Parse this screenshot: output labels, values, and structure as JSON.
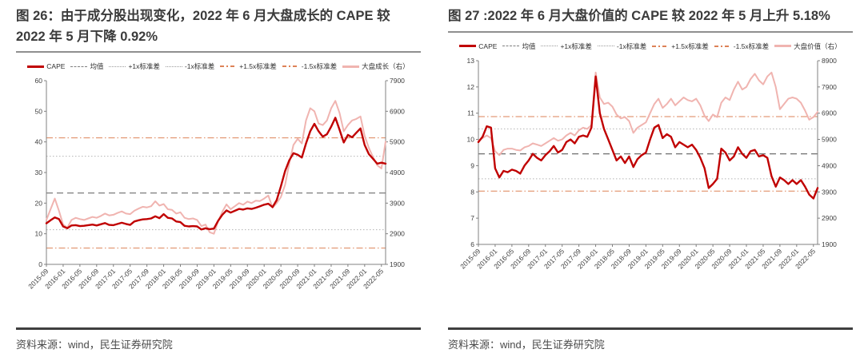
{
  "figures": [
    {
      "title": "图 26：由于成分股出现变化，2022 年 6 月大盘成长的 CAPE 较 2022 年 5 月下降 0.92%",
      "source": "资料来源：wind，民生证券研究院"
    },
    {
      "title": "图 27 :2022 年 6 月大盘价值的 CAPE 较 2022 年 5 月上升 5.18%",
      "source": "资料来源：wind，民生证券研究院"
    }
  ],
  "colors": {
    "cape_line": "#c00000",
    "index_line": "#f0b4b0",
    "mean_line": "#6e6e6e",
    "sd1_line": "#b3b3b3",
    "sd15_line": "#dd8257",
    "title_text": "#3b3b3b",
    "source_text": "#4a4a4a"
  },
  "chart_data": [
    {
      "type": "line",
      "title": "大盘成长 CAPE",
      "x_monthly_start": "2015-09",
      "x_monthly_end": "2022-06",
      "x_tick_labels": [
        "2015-09",
        "2016-01",
        "2016-05",
        "2016-09",
        "2017-01",
        "2017-05",
        "2017-09",
        "2018-01",
        "2018-05",
        "2018-09",
        "2019-01",
        "2019-05",
        "2019-09",
        "2020-01",
        "2020-05",
        "2020-09",
        "2021-01",
        "2021-05",
        "2021-09",
        "2022-01",
        "2022-05"
      ],
      "left_axis": {
        "min": 0,
        "max": 60,
        "step": 10
      },
      "right_axis": {
        "min": 1900,
        "max": 7900,
        "step": 1000
      },
      "ref_lines": [
        {
          "name": "均值",
          "value": 23.3,
          "style": "mean"
        },
        {
          "name": "+1x标准差",
          "value": 35.3,
          "style": "sd1"
        },
        {
          "name": "-1x标准差",
          "value": 11.3,
          "style": "sd1"
        },
        {
          "name": "+1.5x标准差",
          "value": 41.3,
          "style": "sd15"
        },
        {
          "name": "-1.5x标准差",
          "value": 5.3,
          "style": "sd15"
        }
      ],
      "series": [
        {
          "name": "大盘成长（右）",
          "axis": "right",
          "style": "index",
          "values": [
            3350,
            3700,
            4050,
            3650,
            3200,
            3100,
            3350,
            3420,
            3380,
            3350,
            3400,
            3450,
            3420,
            3480,
            3560,
            3500,
            3520,
            3580,
            3630,
            3560,
            3540,
            3650,
            3720,
            3780,
            3760,
            3800,
            3960,
            3820,
            3870,
            3700,
            3680,
            3560,
            3600,
            3420,
            3380,
            3400,
            3350,
            3150,
            3200,
            2950,
            2900,
            3300,
            3620,
            3860,
            3700,
            3800,
            3900,
            3850,
            3950,
            3900,
            3980,
            3970,
            4050,
            4150,
            3750,
            3900,
            4100,
            4500,
            5200,
            5800,
            6000,
            5850,
            6600,
            7000,
            6900,
            6500,
            6450,
            6600,
            7000,
            7240,
            6850,
            6250,
            6450,
            6600,
            6650,
            6730,
            6100,
            5700,
            5400,
            5140,
            5030,
            5910
          ]
        },
        {
          "name": "CAPE",
          "axis": "left",
          "style": "cape",
          "values": [
            13.4,
            14.4,
            15.3,
            14.8,
            12.4,
            11.8,
            12.7,
            12.8,
            12.5,
            12.6,
            12.8,
            13.0,
            12.7,
            13.1,
            13.5,
            12.9,
            12.8,
            13.2,
            13.6,
            13.2,
            12.9,
            14.0,
            14.4,
            14.7,
            14.8,
            15.0,
            15.7,
            15.1,
            16.4,
            15.2,
            15.0,
            14.0,
            13.8,
            12.6,
            12.4,
            12.5,
            12.4,
            11.4,
            11.8,
            11.5,
            11.7,
            14.2,
            16.2,
            17.6,
            16.9,
            17.5,
            18.1,
            17.9,
            18.3,
            18.1,
            18.5,
            19.0,
            19.5,
            19.8,
            18.7,
            21.0,
            25.5,
            30.5,
            34.0,
            36.3,
            35.8,
            34.9,
            39.5,
            43.5,
            45.9,
            43.5,
            41.7,
            42.5,
            45.0,
            47.9,
            44.0,
            39.8,
            42.3,
            41.5,
            43.0,
            44.4,
            39.0,
            36.0,
            34.5,
            32.9,
            33.2,
            32.9
          ]
        }
      ],
      "legend": [
        {
          "label": "CAPE",
          "swatch": "cape"
        },
        {
          "label": "均值",
          "swatch": "mean"
        },
        {
          "label": "+1x标准差",
          "swatch": "sd1"
        },
        {
          "label": "-1x标准差",
          "swatch": "sd1"
        },
        {
          "label": "+1.5x标准差",
          "swatch": "sd15"
        },
        {
          "label": "-1.5x标准差",
          "swatch": "sd15"
        },
        {
          "label": "大盘成长（右）",
          "swatch": "index"
        }
      ]
    },
    {
      "type": "line",
      "title": "大盘价值 CAPE",
      "x_monthly_start": "2015-09",
      "x_monthly_end": "2022-06",
      "x_tick_labels": [
        "2015-09",
        "2016-01",
        "2016-05",
        "2016-09",
        "2017-01",
        "2017-05",
        "2017-09",
        "2018-01",
        "2018-05",
        "2018-09",
        "2019-01",
        "2019-05",
        "2019-09",
        "2020-01",
        "2020-05",
        "2020-09",
        "2021-01",
        "2021-05",
        "2021-09",
        "2022-01",
        "2022-05"
      ],
      "left_axis": {
        "min": 6,
        "max": 13,
        "step": 1
      },
      "right_axis": {
        "min": 1900,
        "max": 8900,
        "step": 1000
      },
      "ref_lines": [
        {
          "name": "均值",
          "value": 9.45,
          "style": "mean"
        },
        {
          "name": "+1x标准差",
          "value": 10.4,
          "style": "sd1"
        },
        {
          "name": "-1x标准差",
          "value": 8.5,
          "style": "sd1"
        },
        {
          "name": "+1.5x标准差",
          "value": 10.87,
          "style": "sd15"
        },
        {
          "name": "-1.5x标准差",
          "value": 8.03,
          "style": "sd15"
        }
      ],
      "series": [
        {
          "name": "大盘价值（右）",
          "axis": "right",
          "style": "index",
          "values": [
            5850,
            5950,
            6050,
            5950,
            5450,
            5300,
            5500,
            5550,
            5550,
            5500,
            5480,
            5600,
            5650,
            5750,
            5700,
            5650,
            5750,
            5850,
            5950,
            5850,
            5900,
            6050,
            6150,
            6050,
            6250,
            6350,
            6300,
            6450,
            8450,
            7500,
            7250,
            7300,
            7150,
            6850,
            6700,
            6750,
            6600,
            6150,
            6350,
            6450,
            6550,
            6900,
            7250,
            7450,
            7100,
            7250,
            7450,
            7200,
            7350,
            7500,
            7400,
            7350,
            7450,
            7200,
            6800,
            6600,
            6850,
            6750,
            7300,
            7500,
            7400,
            7800,
            8100,
            7800,
            7900,
            8200,
            8400,
            8150,
            8000,
            8300,
            8450,
            7900,
            7050,
            7250,
            7450,
            7500,
            7450,
            7300,
            7000,
            6650,
            6750,
            6950
          ]
        },
        {
          "name": "CAPE",
          "axis": "left",
          "style": "cape",
          "values": [
            9.9,
            10.1,
            10.5,
            10.45,
            8.9,
            8.55,
            8.8,
            8.75,
            8.85,
            8.8,
            8.7,
            9.0,
            9.2,
            9.45,
            9.3,
            9.2,
            9.4,
            9.55,
            9.75,
            9.5,
            9.6,
            9.9,
            10.0,
            9.85,
            10.1,
            10.15,
            10.1,
            10.45,
            12.4,
            11.0,
            10.4,
            10.0,
            9.6,
            9.2,
            9.35,
            9.1,
            9.35,
            8.95,
            9.25,
            9.4,
            9.5,
            10.0,
            10.45,
            10.55,
            10.05,
            10.2,
            10.1,
            9.7,
            9.9,
            9.8,
            9.7,
            9.8,
            9.6,
            9.3,
            8.9,
            8.15,
            8.3,
            8.5,
            9.65,
            9.5,
            9.2,
            9.35,
            9.7,
            9.45,
            9.3,
            9.55,
            9.6,
            9.35,
            9.4,
            9.3,
            8.6,
            8.2,
            8.55,
            8.45,
            8.3,
            8.45,
            8.3,
            8.45,
            8.2,
            7.9,
            7.75,
            8.15
          ]
        }
      ],
      "legend": [
        {
          "label": "CAPE",
          "swatch": "cape"
        },
        {
          "label": "均值",
          "swatch": "mean"
        },
        {
          "label": "+1x标准差",
          "swatch": "sd1"
        },
        {
          "label": "-1x标准差",
          "swatch": "sd1"
        },
        {
          "label": "+1.5x标准差",
          "swatch": "sd15"
        },
        {
          "label": "-1.5x标准差",
          "swatch": "sd15"
        },
        {
          "label": "大盘价值（右）",
          "swatch": "index"
        }
      ]
    }
  ]
}
